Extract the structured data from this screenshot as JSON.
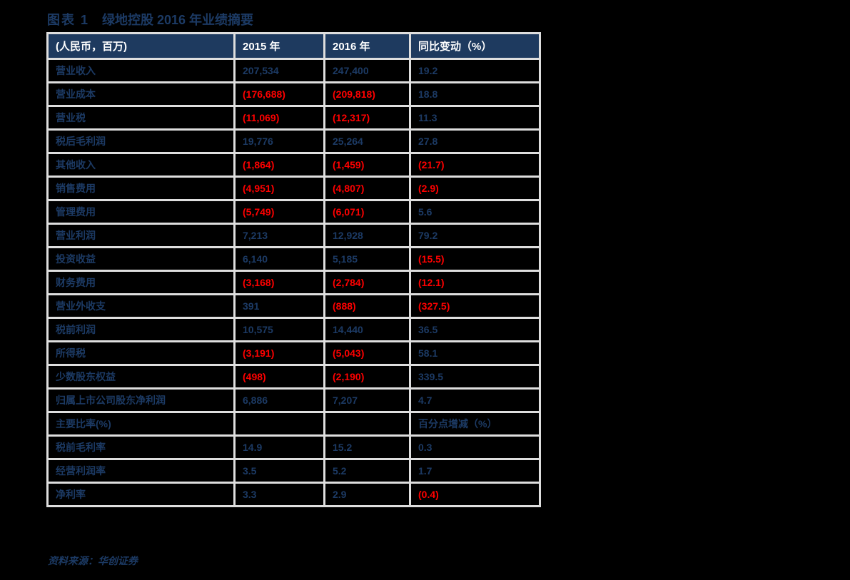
{
  "figure": {
    "label": "图表 1",
    "title": "绿地控股 2016 年业绩摘要",
    "source": "资料来源：华创证券"
  },
  "colors": {
    "page_background": "#000000",
    "header_background": "#1e3a5f",
    "header_text": "#ffffff",
    "navy_text": "#1c3a64",
    "negative_red": "#ff0000",
    "grid_line": "#dedede"
  },
  "table": {
    "headers": [
      "(人民币，百万)",
      "2015 年",
      "2016 年",
      "同比变动（%）"
    ],
    "rows": [
      {
        "label": "营业收入",
        "y2015": "207,534",
        "y2016": "247,400",
        "change": "19.2"
      },
      {
        "label": "营业成本",
        "y2015": "(176,688)",
        "y2016": "(209,818)",
        "change": "18.8"
      },
      {
        "label": "营业税",
        "y2015": "(11,069)",
        "y2016": "(12,317)",
        "change": "11.3"
      },
      {
        "label": "税后毛利润",
        "y2015": "19,776",
        "y2016": "25,264",
        "change": "27.8"
      },
      {
        "label": "其他收入",
        "y2015": "(1,864)",
        "y2016": "(1,459)",
        "change": "(21.7)"
      },
      {
        "label": "销售费用",
        "y2015": "(4,951)",
        "y2016": "(4,807)",
        "change": "(2.9)"
      },
      {
        "label": "管理费用",
        "y2015": "(5,749)",
        "y2016": "(6,071)",
        "change": "5.6"
      },
      {
        "label": "营业利润",
        "y2015": "7,213",
        "y2016": "12,928",
        "change": "79.2"
      },
      {
        "label": "投资收益",
        "y2015": "6,140",
        "y2016": "5,185",
        "change": "(15.5)"
      },
      {
        "label": "财务费用",
        "y2015": "(3,168)",
        "y2016": "(2,784)",
        "change": "(12.1)"
      },
      {
        "label": "营业外收支",
        "y2015": "391",
        "y2016": "(888)",
        "change": "(327.5)"
      },
      {
        "label": "税前利润",
        "y2015": "10,575",
        "y2016": "14,440",
        "change": "36.5"
      },
      {
        "label": "所得税",
        "y2015": "(3,191)",
        "y2016": "(5,043)",
        "change": "58.1"
      },
      {
        "label": "少数股东权益",
        "y2015": "(498)",
        "y2016": "(2,190)",
        "change": "339.5"
      },
      {
        "label": "归属上市公司股东净利润",
        "y2015": "6,886",
        "y2016": "7,207",
        "change": "4.7"
      },
      {
        "label": "主要比率(%)",
        "y2015": "",
        "y2016": "",
        "change": "百分点增减（%）"
      },
      {
        "label": "税前毛利率",
        "y2015": "14.9",
        "y2016": "15.2",
        "change": "0.3"
      },
      {
        "label": "经营利润率",
        "y2015": "3.5",
        "y2016": "5.2",
        "change": "1.7"
      },
      {
        "label": "净利率",
        "y2015": "3.3",
        "y2016": "2.9",
        "change": "(0.4)"
      }
    ]
  }
}
